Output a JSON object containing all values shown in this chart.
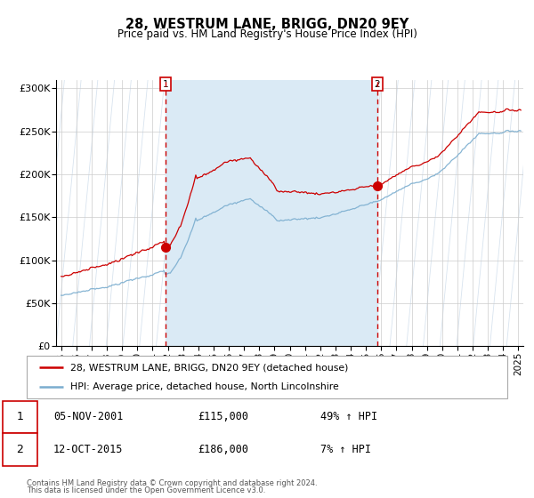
{
  "title": "28, WESTRUM LANE, BRIGG, DN20 9EY",
  "subtitle": "Price paid vs. HM Land Registry's House Price Index (HPI)",
  "legend_line1": "28, WESTRUM LANE, BRIGG, DN20 9EY (detached house)",
  "legend_line2": "HPI: Average price, detached house, North Lincolnshire",
  "transaction1_date": "05-NOV-2001",
  "transaction1_price": 115000,
  "transaction1_hpi": "49% ↑ HPI",
  "transaction2_date": "12-OCT-2015",
  "transaction2_price": 186000,
  "transaction2_hpi": "7% ↑ HPI",
  "footer1": "Contains HM Land Registry data © Crown copyright and database right 2024.",
  "footer2": "This data is licensed under the Open Government Licence v3.0.",
  "red_color": "#cc0000",
  "blue_color": "#7aadcf",
  "bg_shade_color": "#daeaf5",
  "vline_color": "#cc0000",
  "diag_color": "#c8d8e8",
  "ylim": [
    0,
    310000
  ],
  "yticks": [
    0,
    50000,
    100000,
    150000,
    200000,
    250000,
    300000
  ],
  "ytick_labels": [
    "£0",
    "£50K",
    "£100K",
    "£150K",
    "£200K",
    "£250K",
    "£300K"
  ]
}
